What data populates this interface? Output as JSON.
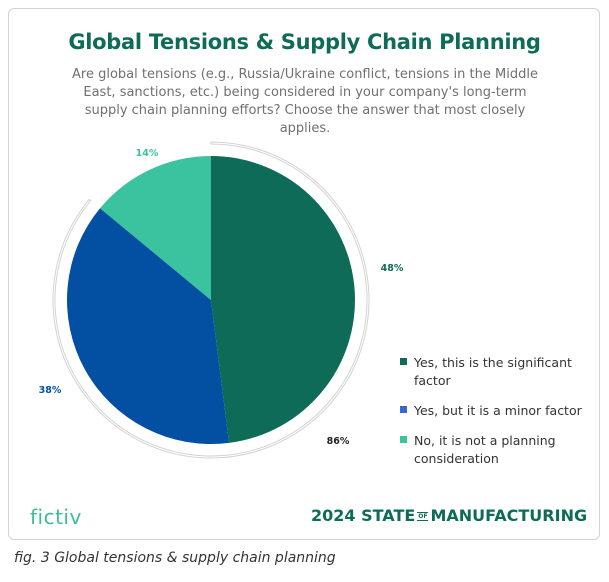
{
  "chart_data": {
    "type": "pie",
    "title": "Global Tensions & Supply Chain Planning",
    "subtitle": "Are global tensions (e.g., Russia/Ukraine conflict, tensions in the Middle East, sanctions, etc.) being considered in your company's long-term supply chain planning efforts? Choose the answer that most closely applies.",
    "slices": [
      {
        "name": "Yes, this is the significant factor",
        "value": 48,
        "label": "48%",
        "color": "#0d6b57"
      },
      {
        "name": "Yes, but it is a minor factor",
        "value": 38,
        "label": "38%",
        "color": "#0350a3"
      },
      {
        "name": "No, it is not a planning consideration",
        "value": 14,
        "label": "14%",
        "color": "#3bc3a0"
      }
    ],
    "combined_arc": {
      "value": 86,
      "label": "86%",
      "color": "#d3d3d3"
    },
    "legend_placement": "right"
  },
  "footer": {
    "logo": "fictiv",
    "brand_year": "2024 STATE",
    "brand_of": "OF",
    "brand_rest": "MANUFACTURING"
  },
  "caption": "fig. 3 Global tensions & supply chain planning"
}
